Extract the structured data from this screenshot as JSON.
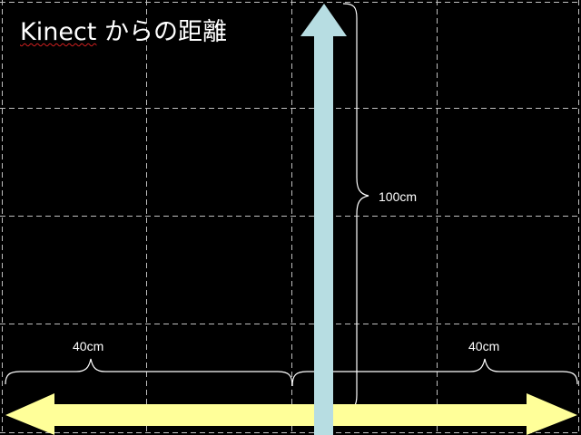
{
  "title": {
    "word": "Kinect",
    "rest": " からの距離"
  },
  "labels": {
    "vertical_distance": "100cm",
    "left_distance": "40cm",
    "right_distance": "40cm"
  },
  "colors": {
    "background": "#000000",
    "grid": "#bfbfbf",
    "vertical_arrow": "#b7dde2",
    "horizontal_arrow": "#ffff99",
    "brace": "#ffffff"
  }
}
